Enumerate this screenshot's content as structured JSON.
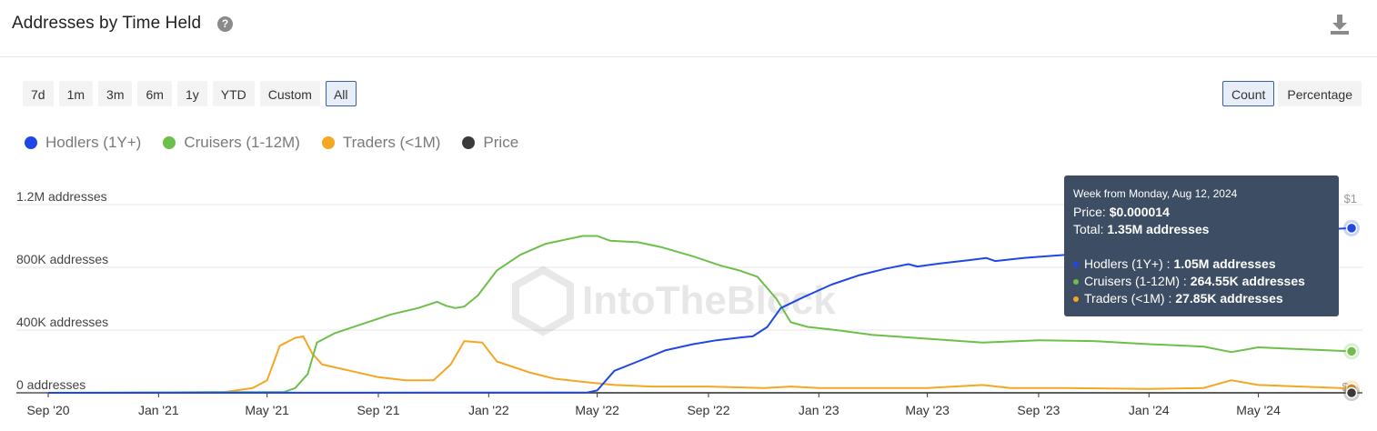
{
  "header": {
    "title": "Addresses by Time Held",
    "help_icon": "question-circle-icon",
    "download_icon": "download-icon"
  },
  "ranges": [
    "7d",
    "1m",
    "3m",
    "6m",
    "1y",
    "YTD",
    "Custom",
    "All"
  ],
  "active_range": "All",
  "modes": [
    "Count",
    "Percentage"
  ],
  "active_mode": "Count",
  "watermark": "IntoTheBlock",
  "tooltip": {
    "date": "Week from Monday, Aug 12, 2024",
    "price_label": "Price:",
    "price_value": "$0.000014",
    "total_label": "Total:",
    "total_value": "1.35M addresses",
    "rows": [
      {
        "label": "Hodlers (1Y+) :",
        "value": "1.05M addresses",
        "color": "#1f47e6"
      },
      {
        "label": "Cruisers (1-12M) :",
        "value": "264.55K addresses",
        "color": "#6cc04a"
      },
      {
        "label": "Traders (<1M) :",
        "value": "27.85K addresses",
        "color": "#f5a623"
      }
    ]
  },
  "chart_data": {
    "type": "line",
    "title": "Addresses by Time Held",
    "x_labels": [
      "Sep '20",
      "Jan '21",
      "May '21",
      "Sep '21",
      "Jan '22",
      "May '22",
      "Sep '22",
      "Jan '23",
      "May '23",
      "Sep '23",
      "Jan '24",
      "May '24"
    ],
    "x_range": [
      "2020-09-01",
      "2024-08-19"
    ],
    "y_ticks": [
      "0 addresses",
      "400K addresses",
      "800K addresses",
      "1.2M addresses"
    ],
    "ylim": [
      0,
      1200000
    ],
    "price_ticks": [
      "$0",
      "$1"
    ],
    "series": [
      {
        "name": "Hodlers (1Y+)",
        "color": "#1f47e6",
        "points": [
          [
            "2020-09-01",
            0
          ],
          [
            "2022-04-20",
            2000
          ],
          [
            "2022-05-01",
            15000
          ],
          [
            "2022-05-20",
            140000
          ],
          [
            "2022-06-15",
            200000
          ],
          [
            "2022-07-15",
            270000
          ],
          [
            "2022-08-15",
            310000
          ],
          [
            "2022-09-10",
            335000
          ],
          [
            "2022-10-10",
            355000
          ],
          [
            "2022-10-20",
            360000
          ],
          [
            "2022-11-05",
            420000
          ],
          [
            "2022-11-20",
            540000
          ],
          [
            "2022-12-15",
            610000
          ],
          [
            "2023-01-15",
            690000
          ],
          [
            "2023-02-15",
            750000
          ],
          [
            "2023-03-15",
            790000
          ],
          [
            "2023-04-10",
            820000
          ],
          [
            "2023-04-20",
            805000
          ],
          [
            "2023-05-15",
            825000
          ],
          [
            "2023-06-15",
            845000
          ],
          [
            "2023-07-05",
            860000
          ],
          [
            "2023-07-15",
            840000
          ],
          [
            "2023-08-15",
            860000
          ],
          [
            "2023-10-01",
            880000
          ],
          [
            "2023-12-01",
            920000
          ],
          [
            "2024-02-01",
            960000
          ],
          [
            "2024-04-01",
            1000000
          ],
          [
            "2024-06-01",
            1030000
          ],
          [
            "2024-08-12",
            1050000
          ]
        ]
      },
      {
        "name": "Cruisers (1-12M)",
        "color": "#6cc04a",
        "points": [
          [
            "2020-09-01",
            0
          ],
          [
            "2021-05-20",
            5000
          ],
          [
            "2021-06-01",
            30000
          ],
          [
            "2021-06-15",
            120000
          ],
          [
            "2021-06-25",
            320000
          ],
          [
            "2021-07-15",
            380000
          ],
          [
            "2021-08-15",
            440000
          ],
          [
            "2021-09-15",
            500000
          ],
          [
            "2021-10-15",
            540000
          ],
          [
            "2021-11-05",
            580000
          ],
          [
            "2021-11-15",
            555000
          ],
          [
            "2021-11-25",
            540000
          ],
          [
            "2021-12-05",
            550000
          ],
          [
            "2021-12-20",
            620000
          ],
          [
            "2022-01-10",
            780000
          ],
          [
            "2022-02-05",
            880000
          ],
          [
            "2022-03-05",
            950000
          ],
          [
            "2022-04-15",
            1000000
          ],
          [
            "2022-05-01",
            1000000
          ],
          [
            "2022-05-15",
            970000
          ],
          [
            "2022-06-15",
            960000
          ],
          [
            "2022-07-10",
            930000
          ],
          [
            "2022-08-15",
            870000
          ],
          [
            "2022-09-15",
            810000
          ],
          [
            "2022-10-05",
            780000
          ],
          [
            "2022-10-25",
            740000
          ],
          [
            "2022-11-15",
            600000
          ],
          [
            "2022-12-01",
            450000
          ],
          [
            "2022-12-20",
            420000
          ],
          [
            "2023-01-20",
            400000
          ],
          [
            "2023-03-01",
            370000
          ],
          [
            "2023-05-01",
            345000
          ],
          [
            "2023-07-01",
            320000
          ],
          [
            "2023-09-01",
            335000
          ],
          [
            "2023-11-01",
            330000
          ],
          [
            "2024-01-01",
            310000
          ],
          [
            "2024-03-01",
            295000
          ],
          [
            "2024-04-01",
            260000
          ],
          [
            "2024-05-01",
            290000
          ],
          [
            "2024-08-12",
            264550
          ]
        ]
      },
      {
        "name": "Traders (<1M)",
        "color": "#f5a623",
        "points": [
          [
            "2020-09-01",
            0
          ],
          [
            "2020-12-01",
            1000
          ],
          [
            "2021-03-15",
            5000
          ],
          [
            "2021-04-15",
            30000
          ],
          [
            "2021-05-01",
            80000
          ],
          [
            "2021-05-15",
            300000
          ],
          [
            "2021-06-01",
            350000
          ],
          [
            "2021-06-10",
            360000
          ],
          [
            "2021-06-20",
            250000
          ],
          [
            "2021-07-01",
            180000
          ],
          [
            "2021-08-01",
            140000
          ],
          [
            "2021-09-01",
            100000
          ],
          [
            "2021-10-01",
            80000
          ],
          [
            "2021-11-01",
            80000
          ],
          [
            "2021-11-20",
            180000
          ],
          [
            "2021-12-05",
            330000
          ],
          [
            "2021-12-25",
            320000
          ],
          [
            "2022-01-10",
            200000
          ],
          [
            "2022-02-15",
            130000
          ],
          [
            "2022-03-15",
            90000
          ],
          [
            "2022-04-15",
            70000
          ],
          [
            "2022-05-20",
            50000
          ],
          [
            "2022-07-01",
            40000
          ],
          [
            "2022-09-01",
            40000
          ],
          [
            "2022-11-01",
            30000
          ],
          [
            "2022-12-01",
            40000
          ],
          [
            "2023-01-01",
            30000
          ],
          [
            "2023-03-01",
            30000
          ],
          [
            "2023-05-01",
            30000
          ],
          [
            "2023-07-01",
            50000
          ],
          [
            "2023-08-01",
            30000
          ],
          [
            "2023-10-01",
            30000
          ],
          [
            "2024-01-01",
            25000
          ],
          [
            "2024-03-01",
            30000
          ],
          [
            "2024-04-01",
            80000
          ],
          [
            "2024-05-01",
            50000
          ],
          [
            "2024-08-12",
            27850
          ]
        ]
      },
      {
        "name": "Price",
        "color": "#3a3a3a",
        "points": [
          [
            "2020-09-01",
            0
          ],
          [
            "2024-08-12",
            0
          ]
        ]
      }
    ]
  }
}
